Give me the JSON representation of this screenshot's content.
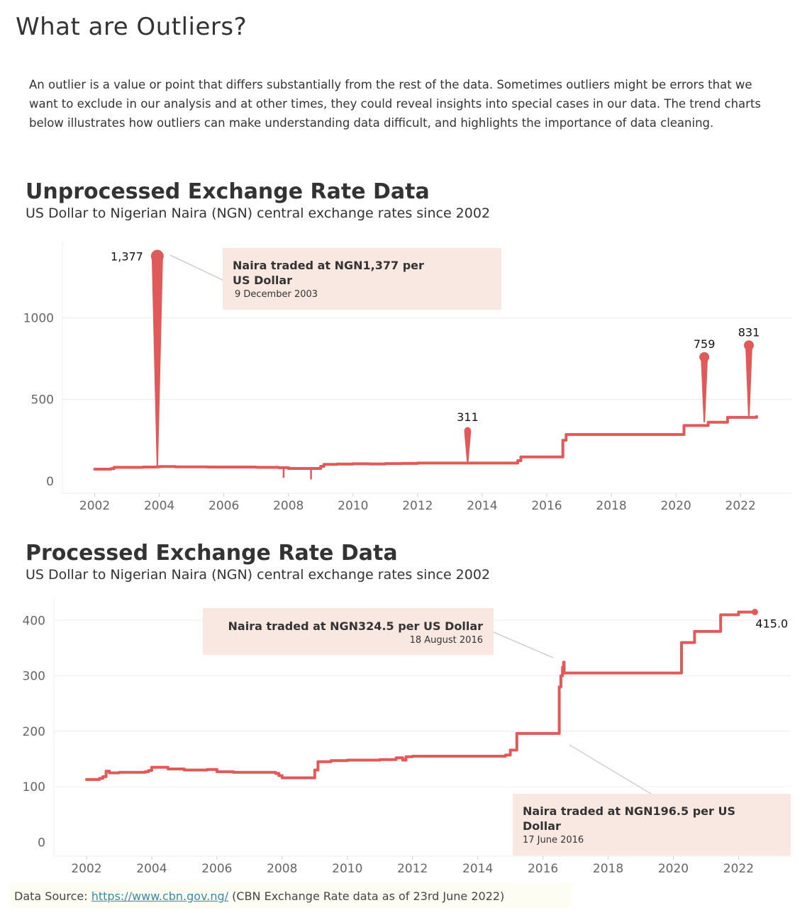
{
  "page": {
    "title": "What are Outliers?",
    "intro": "An outlier is a value or point that differs substantially from the rest of the data. Sometimes outliers might be errors that we want to exclude in our analysis and at other times, they could reveal insights into special cases in our data. The trend charts below illustrates how outliers can make understanding data difficult, and highlights the importance of data cleaning."
  },
  "colors": {
    "line": "#e05a5a",
    "annotation_bg": "#f9e8e1",
    "grid": "#ececec",
    "text": "#333333"
  },
  "chart_data": [
    {
      "type": "line",
      "title": "Unprocessed Exchange Rate Data",
      "subtitle": "US Dollar to Nigerian Naira (NGN) central exchange rates since 2002",
      "xlabel": "",
      "ylabel": "",
      "xlim": [
        2001,
        2023.6
      ],
      "ylim": [
        -40,
        1470
      ],
      "grid": true,
      "x_ticks": [
        "2002",
        "2004",
        "2006",
        "2008",
        "2010",
        "2012",
        "2014",
        "2016",
        "2018",
        "2020",
        "2022"
      ],
      "y_ticks": [
        "0",
        "500",
        "1000"
      ],
      "series": [
        {
          "x": [
            2002.0,
            2002.5,
            2002.6,
            2003.5,
            2003.9,
            2003.95,
            2004.0,
            2004.5,
            2005.5,
            2006.0,
            2007.0,
            2007.7,
            2007.9,
            2008.0,
            2008.5,
            2008.9,
            2009.0,
            2009.1,
            2009.5,
            2010.0,
            2010.5,
            2011.0,
            2011.5,
            2011.9,
            2012.0,
            2013.0,
            2013.5,
            2013.55,
            2014.0,
            2014.5,
            2014.9,
            2015.1,
            2015.2,
            2016.0,
            2016.45,
            2016.5,
            2016.6,
            2016.7,
            2017.0,
            2018.0,
            2019.0,
            2020.2,
            2020.25,
            2020.7,
            2021.0,
            2021.5,
            2021.6,
            2022.0,
            2022.5
          ],
          "y": [
            73,
            76,
            84,
            86,
            87,
            87,
            89,
            87,
            86,
            86,
            84,
            82,
            82,
            77,
            77,
            77,
            90,
            102,
            104,
            106,
            105,
            107,
            108,
            108,
            110,
            110,
            110,
            110,
            110,
            110,
            110,
            125,
            148,
            148,
            148,
            250,
            285,
            285,
            285,
            285,
            285,
            285,
            340,
            340,
            360,
            360,
            390,
            390,
            395
          ]
        }
      ],
      "spikes": [
        {
          "x": 2003.94,
          "y": 1377,
          "base": 88,
          "label": "1,377",
          "dot": true
        },
        {
          "x": 2013.55,
          "y": 311,
          "base": 110,
          "label": "311",
          "dot": true
        },
        {
          "x": 2020.88,
          "y": 759,
          "base": 360,
          "label": "759",
          "dot": true
        },
        {
          "x": 2022.26,
          "y": 831,
          "base": 390,
          "label": "831",
          "dot": true
        },
        {
          "x": 2007.85,
          "y": 20,
          "base": 82,
          "label": "",
          "dot": false
        },
        {
          "x": 2008.7,
          "y": 10,
          "base": 77,
          "label": "",
          "dot": false
        }
      ],
      "annotation": {
        "title": "Naira traded at NGN1,377 per US Dollar",
        "date": "9 December 2003"
      }
    },
    {
      "type": "line",
      "title": "Processed Exchange Rate Data",
      "subtitle": "US Dollar to Nigerian Naira (NGN) central exchange rates since 2002",
      "xlabel": "",
      "ylabel": "",
      "xlim": [
        2001.0,
        2023.6
      ],
      "ylim": [
        -15,
        440
      ],
      "grid": true,
      "x_ticks": [
        "2002",
        "2004",
        "2006",
        "2008",
        "2010",
        "2012",
        "2014",
        "2016",
        "2018",
        "2020",
        "2022"
      ],
      "y_ticks": [
        "0",
        "100",
        "200",
        "300",
        "400"
      ],
      "series": [
        {
          "x": [
            2002.0,
            2002.4,
            2002.5,
            2002.6,
            2002.7,
            2003.0,
            2003.5,
            2003.8,
            2003.9,
            2004.0,
            2004.5,
            2005.0,
            2005.5,
            2005.7,
            2006.0,
            2006.5,
            2007.0,
            2007.5,
            2007.8,
            2007.9,
            2008.0,
            2008.5,
            2008.95,
            2009.0,
            2009.1,
            2009.5,
            2010.0,
            2010.5,
            2011.0,
            2011.5,
            2011.7,
            2011.8,
            2012.0,
            2013.0,
            2014.0,
            2014.8,
            2014.85,
            2015.0,
            2015.1,
            2015.2,
            2016.0,
            2016.45,
            2016.5,
            2016.55,
            2016.6,
            2016.63,
            2016.65,
            2016.7,
            2017.0,
            2018.0,
            2019.0,
            2020.2,
            2020.25,
            2020.6,
            2020.65,
            2021.0,
            2021.4,
            2021.45,
            2022.0,
            2022.5
          ],
          "y": [
            113,
            115,
            118,
            128,
            125,
            126,
            126,
            127,
            129,
            135,
            132,
            130,
            130,
            131,
            127,
            126,
            126,
            126,
            124,
            120,
            116,
            116,
            116,
            130,
            145,
            147,
            148,
            148,
            149,
            152,
            148,
            154,
            155,
            155,
            155,
            155,
            157,
            166,
            166,
            196,
            196,
            196,
            280,
            300,
            315,
            324.5,
            305,
            305,
            305,
            305,
            305,
            305,
            360,
            360,
            380,
            380,
            380,
            410,
            415,
            415
          ]
        }
      ],
      "end_label": "415.0",
      "annotations": [
        {
          "title": "Naira traded at NGN324.5 per US Dollar",
          "date": "18 August 2016",
          "x": 2016.63,
          "y": 324.5
        },
        {
          "title": "Naira traded at NGN196.5 per US Dollar",
          "date": "17 June 2016",
          "x": 2016.45,
          "y": 196.5
        }
      ]
    }
  ],
  "footer": {
    "prefix": "Data Source: ",
    "link": "https://www.cbn.gov.ng/",
    "suffix": " (CBN Exchange Rate data as of 23rd June 2022)"
  }
}
